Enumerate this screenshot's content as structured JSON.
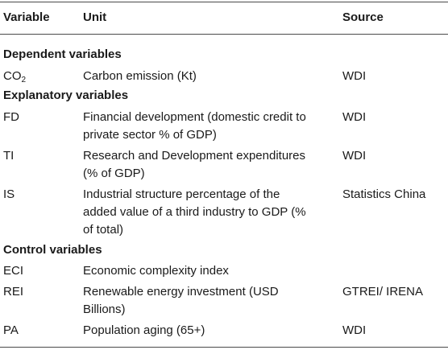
{
  "headers": {
    "variable": "Variable",
    "unit": "Unit",
    "source": "Source"
  },
  "sections": {
    "dependent": "Dependent variables",
    "explanatory": "Explanatory variables",
    "control": "Control variables"
  },
  "rows": {
    "co2": {
      "var_base": "CO",
      "var_sub": "2",
      "unit": "Carbon emission (Kt)",
      "source": "WDI"
    },
    "fd": {
      "var": "FD",
      "unit_l1": "Financial development (domestic credit to",
      "unit_l2": "private sector % of GDP)",
      "source": "WDI"
    },
    "ti": {
      "var": "TI",
      "unit_l1": "Research and Development expenditures",
      "unit_l2": "(% of GDP)",
      "source": "WDI"
    },
    "is": {
      "var": "IS",
      "unit_l1": "Industrial structure percentage of the",
      "unit_l2": "added value of a third industry to GDP (%",
      "unit_l3": "of total)",
      "source": "Statistics China"
    },
    "eci": {
      "var": "ECI",
      "unit": "Economic complexity index",
      "source": ""
    },
    "rei": {
      "var": "REI",
      "unit_l1": "Renewable energy investment (USD",
      "unit_l2": "Billions)",
      "source": "GTREI/ IRENA"
    },
    "pa": {
      "var": "PA",
      "unit": "Population aging (65+)",
      "source": "WDI"
    }
  }
}
